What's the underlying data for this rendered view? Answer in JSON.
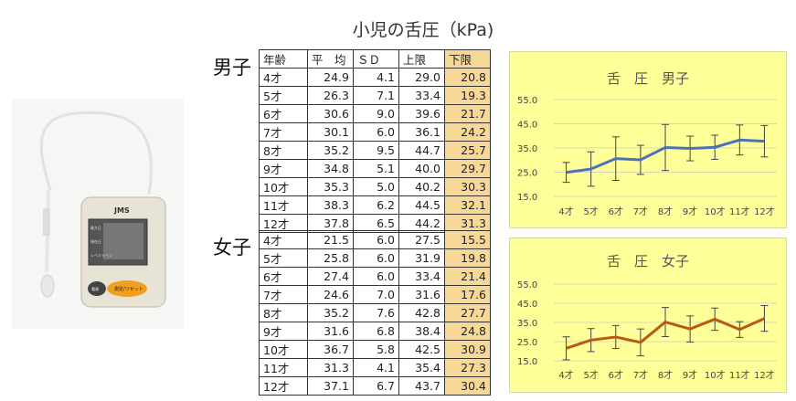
{
  "title": "小児の舌圧（kPa)",
  "table": {
    "headers": [
      "年齢",
      "平　均",
      "ＳＤ",
      "上限",
      "下限"
    ],
    "groups": [
      {
        "label": "男子",
        "rows": [
          [
            "4才",
            "24.9",
            "4.1",
            "29.0",
            "20.8"
          ],
          [
            "5才",
            "26.3",
            "7.1",
            "33.4",
            "19.3"
          ],
          [
            "6才",
            "30.6",
            "9.0",
            "39.6",
            "21.7"
          ],
          [
            "7才",
            "30.1",
            "6.0",
            "36.1",
            "24.2"
          ],
          [
            "8才",
            "35.2",
            "9.5",
            "44.7",
            "25.7"
          ],
          [
            "9才",
            "34.8",
            "5.1",
            "40.0",
            "29.7"
          ],
          [
            "10才",
            "35.3",
            "5.0",
            "40.2",
            "30.3"
          ],
          [
            "11才",
            "38.3",
            "6.2",
            "44.5",
            "32.1"
          ],
          [
            "12才",
            "37.8",
            "6.5",
            "44.2",
            "31.3"
          ]
        ]
      },
      {
        "label": "女子",
        "rows": [
          [
            "4才",
            "21.5",
            "6.0",
            "27.5",
            "15.5"
          ],
          [
            "5才",
            "25.8",
            "6.0",
            "31.9",
            "19.8"
          ],
          [
            "6才",
            "27.4",
            "6.0",
            "33.4",
            "21.4"
          ],
          [
            "7才",
            "24.6",
            "7.0",
            "31.6",
            "17.6"
          ],
          [
            "8才",
            "35.2",
            "7.6",
            "42.8",
            "27.7"
          ],
          [
            "9才",
            "31.6",
            "6.8",
            "38.4",
            "24.8"
          ],
          [
            "10才",
            "36.7",
            "5.8",
            "42.5",
            "30.9"
          ],
          [
            "11才",
            "31.3",
            "4.1",
            "35.4",
            "27.3"
          ],
          [
            "12才",
            "37.1",
            "6.7",
            "43.7",
            "30.4"
          ]
        ]
      }
    ]
  },
  "device": {
    "brand": "JMS",
    "screen_label_1": "最大圧",
    "screen_label_2": "現在圧",
    "screen_label_3": "レベルライン",
    "button_left": "電源",
    "button_right": "測定/リセット"
  },
  "chart_data": [
    {
      "type": "line",
      "title": "舌　圧　男子",
      "categories": [
        "4才",
        "5才",
        "6才",
        "7才",
        "8才",
        "9才",
        "10才",
        "11才",
        "12才"
      ],
      "values": [
        24.9,
        26.3,
        30.6,
        30.1,
        35.2,
        34.8,
        35.3,
        38.3,
        37.8
      ],
      "sd": [
        4.1,
        7.1,
        9.0,
        6.0,
        9.5,
        5.1,
        5.0,
        6.2,
        6.5
      ],
      "yticks": [
        "55.0",
        "45.0",
        "35.0",
        "25.0",
        "15.0"
      ],
      "ylim": [
        15,
        55
      ],
      "color": "#4a72b8",
      "grid": true
    },
    {
      "type": "line",
      "title": "舌　圧　女子",
      "categories": [
        "4才",
        "5才",
        "6才",
        "7才",
        "8才",
        "9才",
        "10才",
        "11才",
        "12才"
      ],
      "values": [
        21.5,
        25.8,
        27.4,
        24.6,
        35.2,
        31.6,
        36.7,
        31.3,
        37.1
      ],
      "sd": [
        6.0,
        6.0,
        6.0,
        7.0,
        7.6,
        6.8,
        5.8,
        4.1,
        6.7
      ],
      "yticks": [
        "55.0",
        "45.0",
        "35.0",
        "25.0",
        "15.0"
      ],
      "ylim": [
        15,
        55
      ],
      "color": "#b85a16",
      "grid": true
    }
  ]
}
